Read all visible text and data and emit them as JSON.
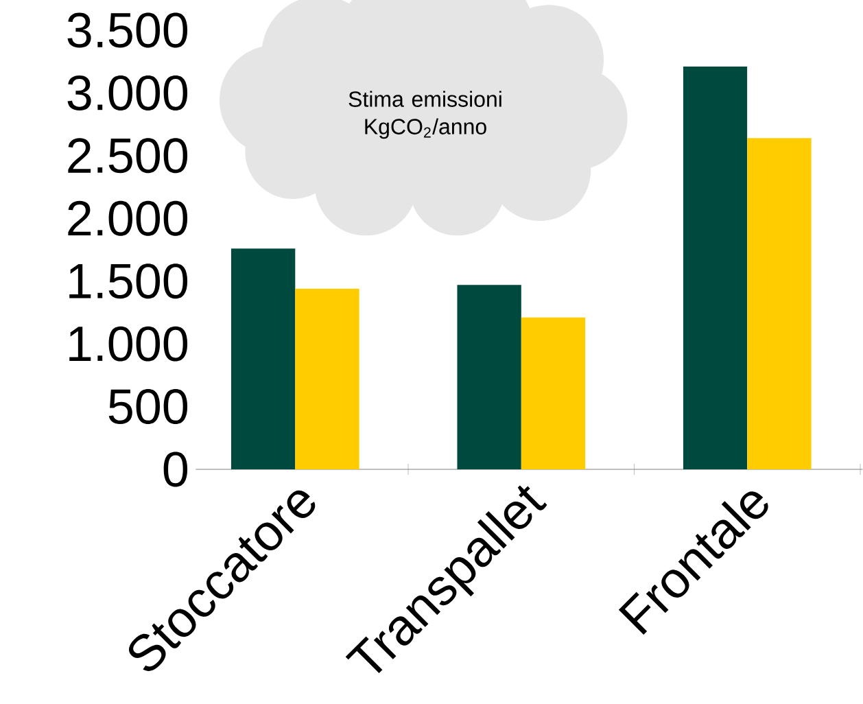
{
  "chart_data": {
    "type": "bar",
    "categories": [
      "Stoccatore",
      "Transpallet",
      "Frontale"
    ],
    "series": [
      {
        "color": "#00493f",
        "values": [
          1760,
          1470,
          3210
        ]
      },
      {
        "color": "#ffcc00",
        "values": [
          1440,
          1210,
          2640
        ]
      }
    ],
    "ylim": [
      0,
      3500
    ],
    "yticks": [
      0,
      500,
      {
        "value": 1000,
        "label": "1.000"
      },
      {
        "value": 1500,
        "label": "1.500"
      },
      {
        "value": 2000,
        "label": "2.000"
      },
      {
        "value": 2500,
        "label": "2.500"
      },
      {
        "value": 3000,
        "label": "3.000"
      },
      {
        "value": 3500,
        "label": "3.500"
      }
    ],
    "annotations": [
      "Stima  emissioni KgCO$_{2}$/anno"
    ],
    "grid": false
  }
}
